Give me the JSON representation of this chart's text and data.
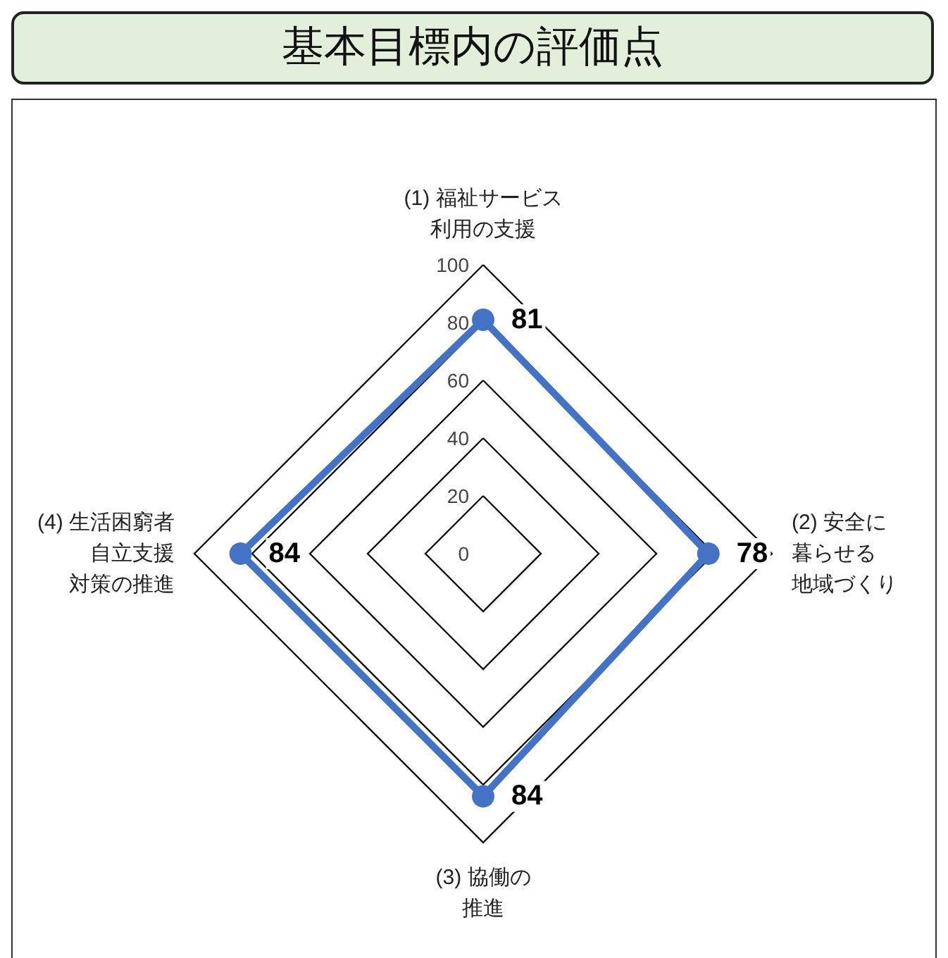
{
  "chart_data": {
    "type": "radar",
    "title": "基本目標内の評価点",
    "categories": [
      "(1) 福祉サービス利用の支援",
      "(2) 安全に暮らせる地域づくり",
      "(3) 協働の推進",
      "(4) 生活困窮者自立支援対策の推進"
    ],
    "series": [
      {
        "color": "#4472c4",
        "values": [
          81,
          78,
          84,
          84
        ]
      }
    ],
    "ylim": [
      0,
      100
    ],
    "yticks": [
      0,
      20,
      40,
      60,
      80,
      100
    ],
    "data_labels": true,
    "marker": "circle"
  }
}
